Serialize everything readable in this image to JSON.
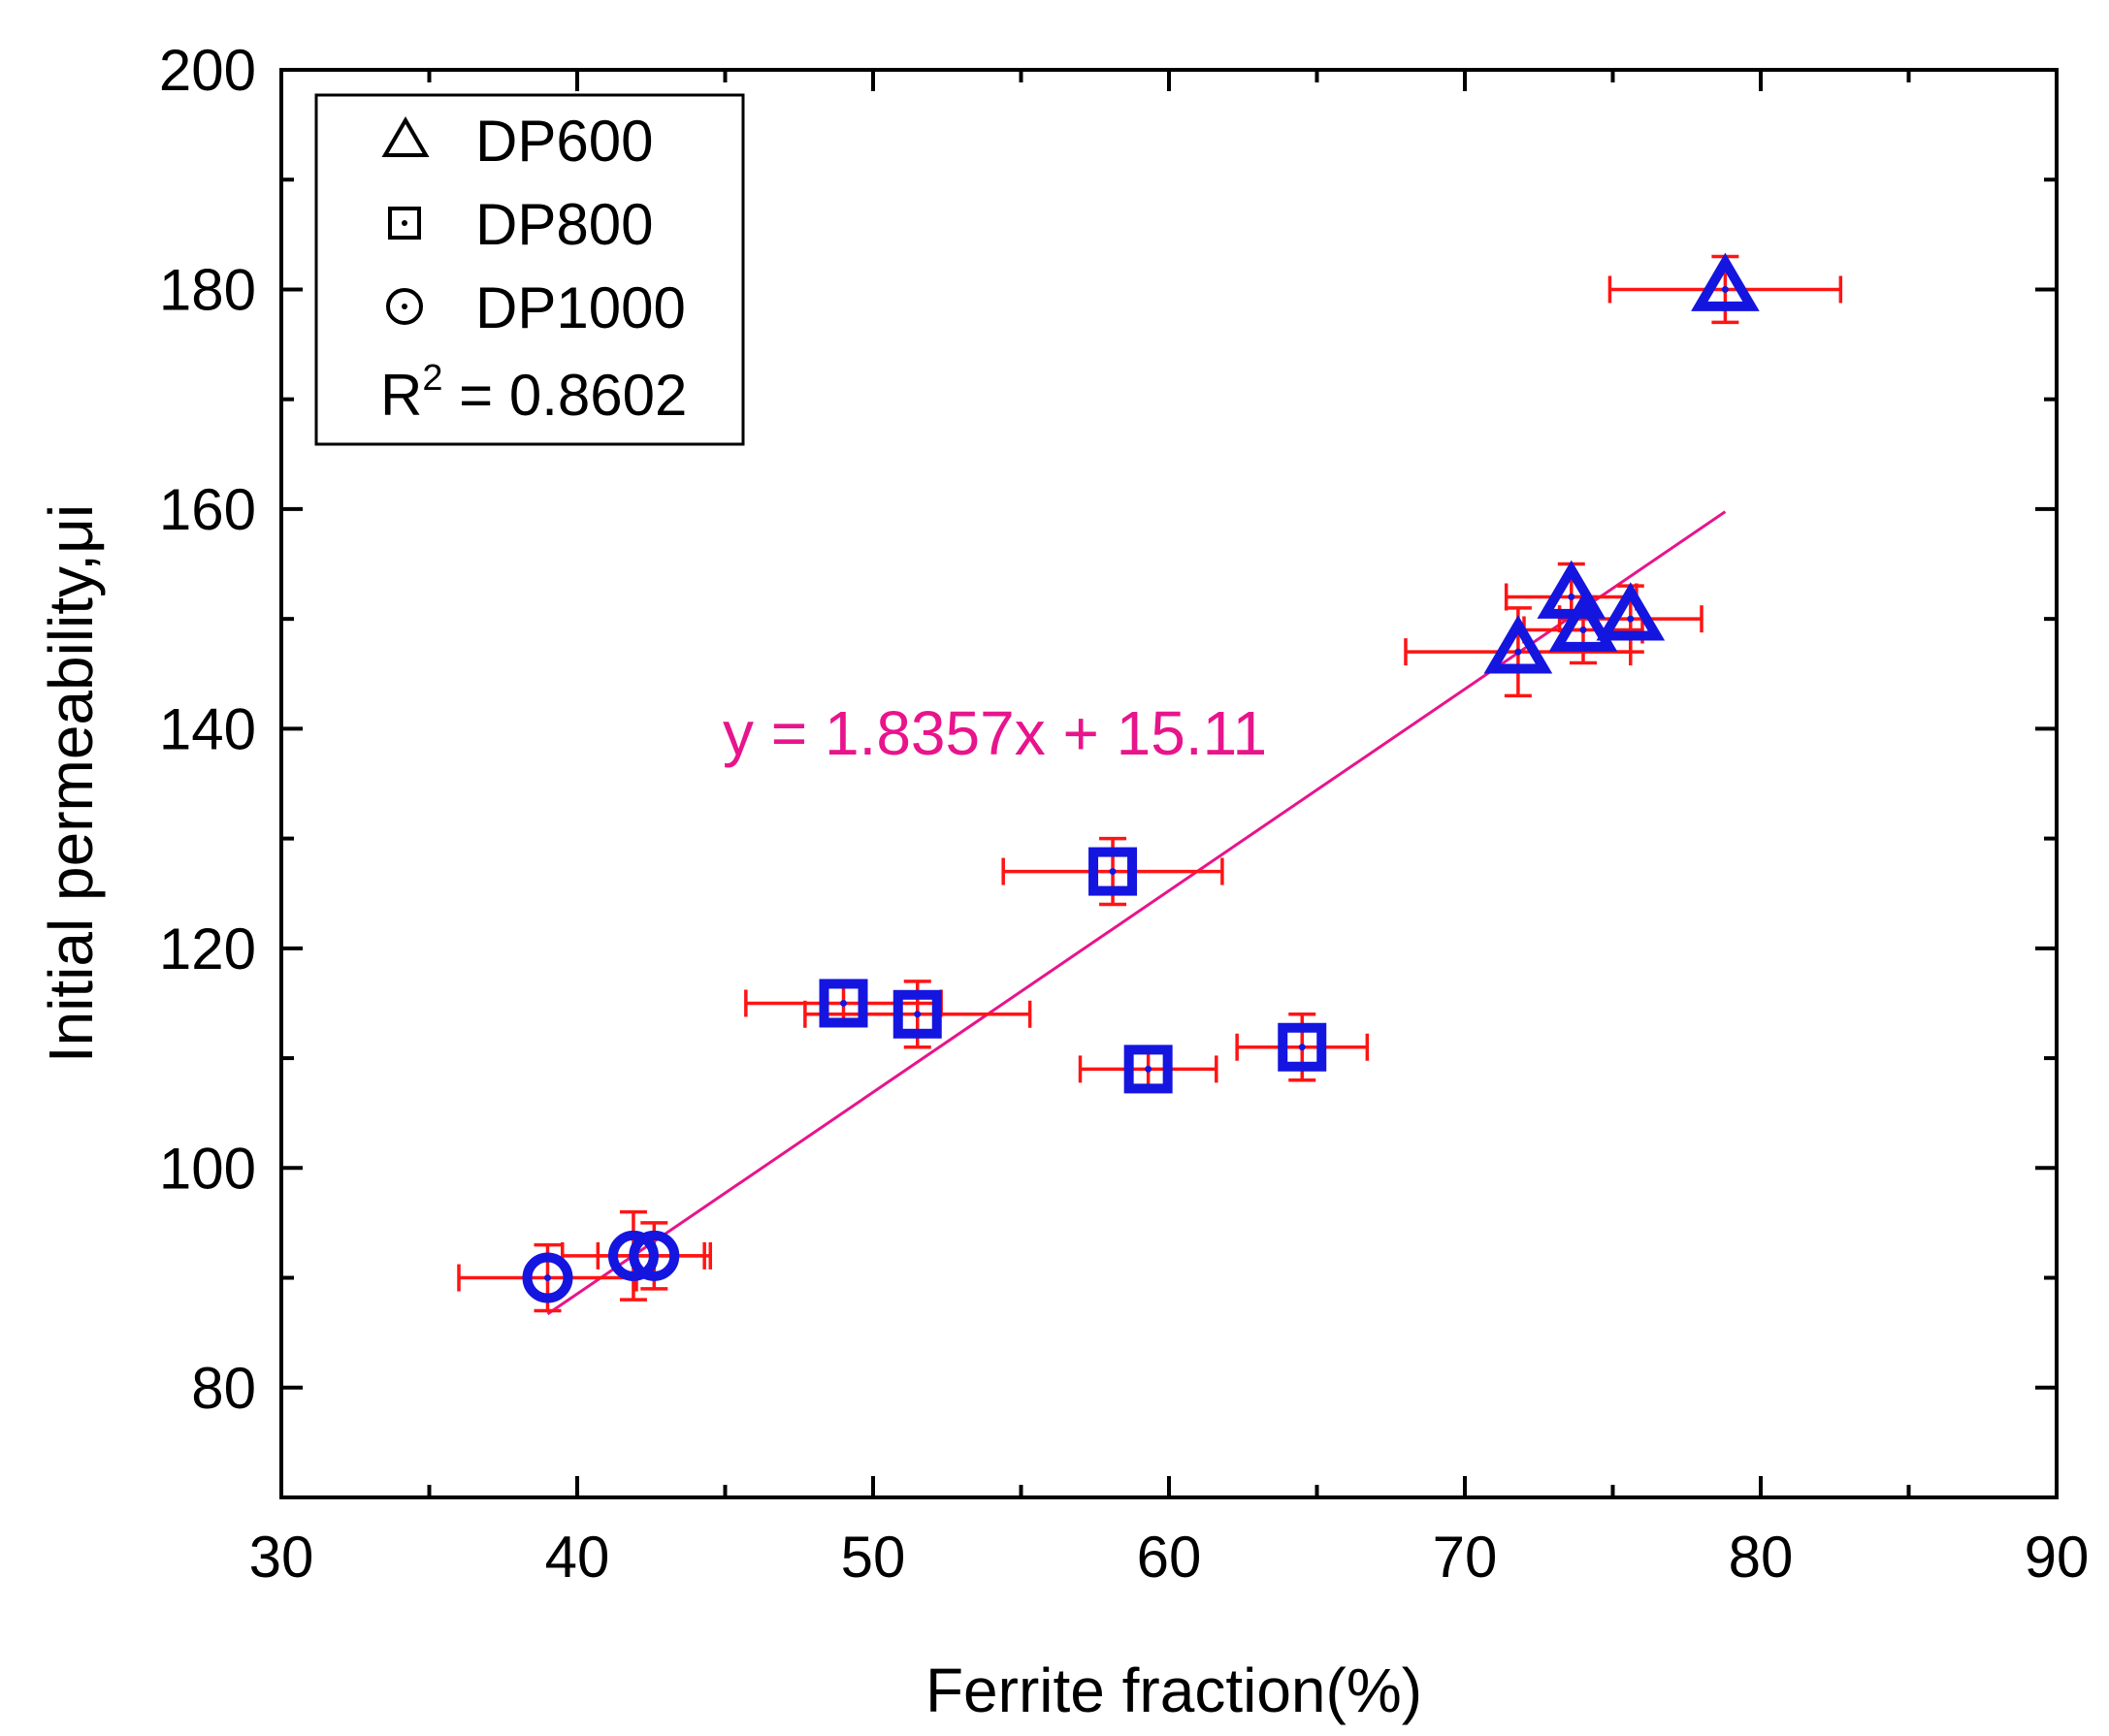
{
  "chart_data": {
    "type": "scatter",
    "title": "",
    "xlabel": "Ferrite fraction(%)",
    "ylabel": "Initial permeability,μi",
    "xlim": [
      30,
      90
    ],
    "ylim": [
      70,
      200
    ],
    "x_ticks": [
      30,
      40,
      50,
      60,
      70,
      80,
      90
    ],
    "y_ticks": [
      80,
      100,
      120,
      140,
      160,
      180,
      200
    ],
    "x_tick_labels": [
      "30",
      "40",
      "50",
      "60",
      "70",
      "80",
      "90"
    ],
    "y_tick_labels": [
      "80",
      "100",
      "120",
      "140",
      "160",
      "180",
      "200"
    ],
    "grid": false,
    "legend_position": "top-left",
    "marker_color": "#1515e0",
    "error_color": "#ff1414",
    "series": [
      {
        "name": "DP600",
        "marker": "triangle",
        "points": [
          {
            "x": 71.8,
            "y": 147,
            "xerr": 3.8,
            "yerr": 4
          },
          {
            "x": 73.6,
            "y": 152,
            "xerr": 2.2,
            "yerr": 3
          },
          {
            "x": 74.0,
            "y": 149,
            "xerr": 2.0,
            "yerr": 3
          },
          {
            "x": 75.6,
            "y": 150,
            "xerr": 2.4,
            "yerr": 3
          },
          {
            "x": 78.8,
            "y": 180,
            "xerr": 3.9,
            "yerr": 3
          }
        ]
      },
      {
        "name": "DP800",
        "marker": "square",
        "points": [
          {
            "x": 49.0,
            "y": 115,
            "xerr": 3.3,
            "yerr": 2
          },
          {
            "x": 51.5,
            "y": 114,
            "xerr": 3.8,
            "yerr": 3
          },
          {
            "x": 58.1,
            "y": 127,
            "xerr": 3.7,
            "yerr": 3
          },
          {
            "x": 59.3,
            "y": 109,
            "xerr": 2.3,
            "yerr": 2
          },
          {
            "x": 64.5,
            "y": 111,
            "xerr": 2.2,
            "yerr": 3
          }
        ]
      },
      {
        "name": "DP1000",
        "marker": "circle",
        "points": [
          {
            "x": 39.0,
            "y": 90,
            "xerr": 3.0,
            "yerr": 3
          },
          {
            "x": 41.9,
            "y": 92,
            "xerr": 2.4,
            "yerr": 4
          },
          {
            "x": 42.6,
            "y": 92,
            "xerr": 1.9,
            "yerr": 3
          }
        ]
      }
    ],
    "fit_line": {
      "equation": "y = 1.8357x + 15.11",
      "slope": 1.8357,
      "intercept": 15.11,
      "x_range": [
        39,
        78.8
      ],
      "color": "#e8148c"
    },
    "legend": {
      "entries": [
        {
          "label": "DP600",
          "symbol": "△"
        },
        {
          "label": "DP800",
          "symbol": "⊡"
        },
        {
          "label": "DP1000",
          "symbol": "⊙"
        }
      ],
      "r2_label": "R",
      "r2_sup": "2",
      "r2_value": " = 0.8602"
    }
  }
}
